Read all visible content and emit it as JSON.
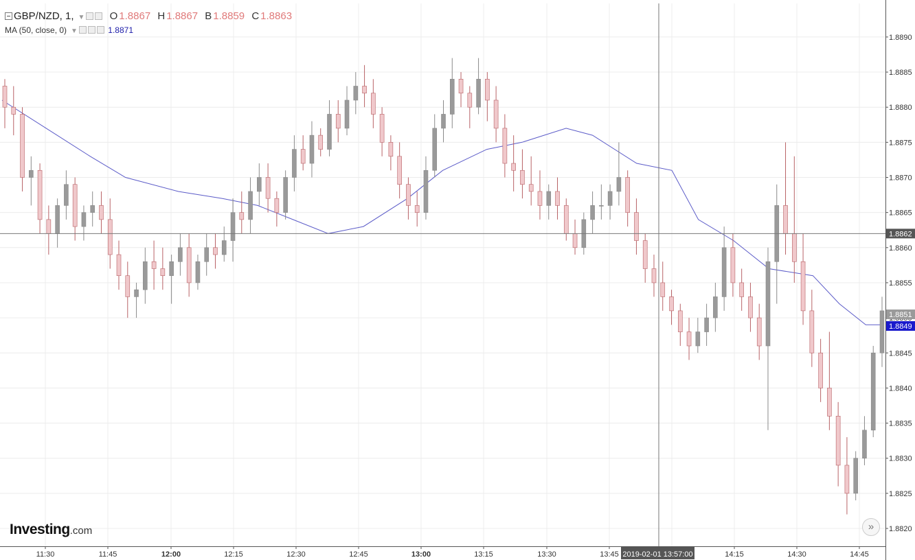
{
  "legend": {
    "symbol": "GBP/NZD, 1,",
    "o_label": "O",
    "o_value": "1.8867",
    "h_label": "H",
    "h_value": "1.8867",
    "b_label": "B",
    "b_value": "1.8859",
    "c_label": "C",
    "c_value": "1.8863",
    "ma_label": "MA (50, close, 0)",
    "ma_value": "1.8871"
  },
  "logo": {
    "main": "Investing",
    "suffix": ".com"
  },
  "scroll_button": {
    "glyph": "»"
  },
  "colors": {
    "up": "#9a9a9a",
    "down": "#f0c8cb",
    "down_edge": "#b86266",
    "ma": "#5b5bc8",
    "axis_text": "#333333",
    "grid": "#ececec"
  },
  "chart_data": {
    "type": "candlestick",
    "ylim": [
      1.8816,
      1.8894
    ],
    "y_ticks": [
      "1.8820",
      "1.8825",
      "1.8830",
      "1.8835",
      "1.8840",
      "1.8845",
      "1.8850",
      "1.8855",
      "1.8860",
      "1.8865",
      "1.8870",
      "1.8875",
      "1.8880",
      "1.8885",
      "1.8890"
    ],
    "x_ticks": [
      "11:30",
      "11:45",
      "12:00",
      "12:15",
      "12:30",
      "12:45",
      "13:00",
      "13:15",
      "13:30",
      "13:45",
      "14:00",
      "14:15",
      "14:30",
      "14:45"
    ],
    "x_ticks_bold": [
      "12:00",
      "13:00"
    ],
    "crosshair_time_label": "2019-02-01 13:57:00",
    "crosshair_price_label": "1.8862",
    "last_price_label": "1.8851",
    "ma_price_label": "1.8849",
    "candles": [
      [
        1.8883,
        1.8884,
        1.8877,
        1.888
      ],
      [
        1.888,
        1.8883,
        1.8876,
        1.8879
      ],
      [
        1.8879,
        1.888,
        1.8868,
        1.887
      ],
      [
        1.887,
        1.8873,
        1.8866,
        1.8871
      ],
      [
        1.8871,
        1.8872,
        1.8862,
        1.8864
      ],
      [
        1.8864,
        1.8866,
        1.8859,
        1.8862
      ],
      [
        1.8862,
        1.8867,
        1.886,
        1.8866
      ],
      [
        1.8866,
        1.8871,
        1.8864,
        1.8869
      ],
      [
        1.8869,
        1.887,
        1.8861,
        1.8863
      ],
      [
        1.8863,
        1.8866,
        1.8861,
        1.8865
      ],
      [
        1.8865,
        1.8868,
        1.8863,
        1.8866
      ],
      [
        1.8866,
        1.8868,
        1.8862,
        1.8864
      ],
      [
        1.8864,
        1.8867,
        1.8857,
        1.8859
      ],
      [
        1.8859,
        1.8861,
        1.8854,
        1.8856
      ],
      [
        1.8856,
        1.8858,
        1.885,
        1.8853
      ],
      [
        1.8853,
        1.8855,
        1.885,
        1.8854
      ],
      [
        1.8854,
        1.886,
        1.8852,
        1.8858
      ],
      [
        1.8858,
        1.8861,
        1.8854,
        1.8857
      ],
      [
        1.8857,
        1.886,
        1.8854,
        1.8856
      ],
      [
        1.8856,
        1.8859,
        1.8852,
        1.8858
      ],
      [
        1.8858,
        1.8862,
        1.8856,
        1.886
      ],
      [
        1.886,
        1.8862,
        1.8853,
        1.8855
      ],
      [
        1.8855,
        1.8859,
        1.8854,
        1.8858
      ],
      [
        1.8858,
        1.8862,
        1.8856,
        1.886
      ],
      [
        1.886,
        1.8862,
        1.8857,
        1.8859
      ],
      [
        1.8859,
        1.8863,
        1.8858,
        1.8861
      ],
      [
        1.8861,
        1.8867,
        1.8858,
        1.8865
      ],
      [
        1.8865,
        1.8868,
        1.8862,
        1.8864
      ],
      [
        1.8864,
        1.887,
        1.8862,
        1.8868
      ],
      [
        1.8868,
        1.8872,
        1.8866,
        1.887
      ],
      [
        1.887,
        1.8872,
        1.8865,
        1.8867
      ],
      [
        1.8867,
        1.8868,
        1.8863,
        1.8865
      ],
      [
        1.8865,
        1.8871,
        1.8864,
        1.887
      ],
      [
        1.887,
        1.8876,
        1.8868,
        1.8874
      ],
      [
        1.8874,
        1.8876,
        1.8871,
        1.8872
      ],
      [
        1.8872,
        1.8878,
        1.887,
        1.8876
      ],
      [
        1.8876,
        1.8877,
        1.8873,
        1.8874
      ],
      [
        1.8874,
        1.8881,
        1.8873,
        1.8879
      ],
      [
        1.8879,
        1.8881,
        1.8875,
        1.8877
      ],
      [
        1.8877,
        1.8883,
        1.8876,
        1.8881
      ],
      [
        1.8881,
        1.8885,
        1.8879,
        1.8883
      ],
      [
        1.8883,
        1.8886,
        1.888,
        1.8882
      ],
      [
        1.8882,
        1.8884,
        1.8877,
        1.8879
      ],
      [
        1.8879,
        1.888,
        1.8873,
        1.8875
      ],
      [
        1.8875,
        1.8876,
        1.8871,
        1.8873
      ],
      [
        1.8873,
        1.8875,
        1.8867,
        1.8869
      ],
      [
        1.8869,
        1.887,
        1.8864,
        1.8866
      ],
      [
        1.8866,
        1.8868,
        1.8863,
        1.8865
      ],
      [
        1.8865,
        1.8873,
        1.8864,
        1.8871
      ],
      [
        1.8871,
        1.8879,
        1.887,
        1.8877
      ],
      [
        1.8877,
        1.8881,
        1.8875,
        1.8879
      ],
      [
        1.8879,
        1.8887,
        1.8877,
        1.8884
      ],
      [
        1.8884,
        1.8885,
        1.888,
        1.8882
      ],
      [
        1.8882,
        1.8883,
        1.8877,
        1.888
      ],
      [
        1.888,
        1.8887,
        1.8879,
        1.8884
      ],
      [
        1.8884,
        1.8885,
        1.8878,
        1.8881
      ],
      [
        1.8881,
        1.8883,
        1.8875,
        1.8877
      ],
      [
        1.8877,
        1.8879,
        1.887,
        1.8872
      ],
      [
        1.8872,
        1.8876,
        1.8868,
        1.8871
      ],
      [
        1.8871,
        1.8874,
        1.8867,
        1.8869
      ],
      [
        1.8869,
        1.8873,
        1.8866,
        1.8868
      ],
      [
        1.8868,
        1.8871,
        1.8864,
        1.8866
      ],
      [
        1.8866,
        1.8869,
        1.8864,
        1.8868
      ],
      [
        1.8868,
        1.887,
        1.8864,
        1.8866
      ],
      [
        1.8866,
        1.8867,
        1.8861,
        1.8862
      ],
      [
        1.8862,
        1.8864,
        1.8859,
        1.886
      ],
      [
        1.886,
        1.8865,
        1.8859,
        1.8864
      ],
      [
        1.8864,
        1.8868,
        1.8862,
        1.8866
      ],
      [
        1.8866,
        1.8869,
        1.8864,
        1.8866
      ],
      [
        1.8866,
        1.8869,
        1.8864,
        1.8868
      ],
      [
        1.8868,
        1.8875,
        1.8866,
        1.887
      ],
      [
        1.887,
        1.8871,
        1.8863,
        1.8865
      ],
      [
        1.8865,
        1.8867,
        1.8859,
        1.8861
      ],
      [
        1.8861,
        1.8862,
        1.8855,
        1.8857
      ],
      [
        1.8857,
        1.8859,
        1.8853,
        1.8855
      ],
      [
        1.8855,
        1.8858,
        1.8851,
        1.8853
      ],
      [
        1.8853,
        1.8854,
        1.8849,
        1.8851
      ],
      [
        1.8851,
        1.8852,
        1.8846,
        1.8848
      ],
      [
        1.8848,
        1.885,
        1.8844,
        1.8846
      ],
      [
        1.8846,
        1.885,
        1.8845,
        1.8848
      ],
      [
        1.8848,
        1.8852,
        1.8846,
        1.885
      ],
      [
        1.885,
        1.8855,
        1.8848,
        1.8853
      ],
      [
        1.8853,
        1.8863,
        1.8851,
        1.886
      ],
      [
        1.886,
        1.8862,
        1.8853,
        1.8855
      ],
      [
        1.8855,
        1.8857,
        1.8851,
        1.8853
      ],
      [
        1.8853,
        1.8855,
        1.8848,
        1.885
      ],
      [
        1.885,
        1.8852,
        1.8844,
        1.8846
      ],
      [
        1.8846,
        1.886,
        1.8834,
        1.8858
      ],
      [
        1.8858,
        1.8869,
        1.8852,
        1.8866
      ],
      [
        1.8866,
        1.8875,
        1.8859,
        1.8862
      ],
      [
        1.8862,
        1.8873,
        1.8855,
        1.8858
      ],
      [
        1.8858,
        1.8862,
        1.8849,
        1.8851
      ],
      [
        1.8851,
        1.8854,
        1.8843,
        1.8845
      ],
      [
        1.8845,
        1.8847,
        1.8838,
        1.884
      ],
      [
        1.884,
        1.8848,
        1.8834,
        1.8836
      ],
      [
        1.8836,
        1.8838,
        1.8826,
        1.8829
      ],
      [
        1.8829,
        1.8833,
        1.8822,
        1.8825
      ],
      [
        1.8825,
        1.8831,
        1.8824,
        1.883
      ],
      [
        1.883,
        1.8836,
        1.8829,
        1.8834
      ],
      [
        1.8834,
        1.8846,
        1.8833,
        1.8845
      ],
      [
        1.8845,
        1.8853,
        1.8843,
        1.8851
      ]
    ],
    "ma": [
      [
        0,
        1.8881
      ],
      [
        0.05,
        1.8877
      ],
      [
        0.1,
        1.8873
      ],
      [
        0.14,
        1.887
      ],
      [
        0.2,
        1.8868
      ],
      [
        0.25,
        1.8867
      ],
      [
        0.29,
        1.8866
      ],
      [
        0.33,
        1.8864
      ],
      [
        0.37,
        1.8862
      ],
      [
        0.41,
        1.8863
      ],
      [
        0.46,
        1.8867
      ],
      [
        0.5,
        1.8871
      ],
      [
        0.55,
        1.8874
      ],
      [
        0.59,
        1.8875
      ],
      [
        0.64,
        1.8877
      ],
      [
        0.67,
        1.8876
      ],
      [
        0.72,
        1.8872
      ],
      [
        0.76,
        1.8871
      ],
      [
        0.79,
        1.8864
      ],
      [
        0.83,
        1.8861
      ],
      [
        0.87,
        1.8857
      ],
      [
        0.92,
        1.8856
      ],
      [
        0.95,
        1.8852
      ],
      [
        0.98,
        1.8849
      ],
      [
        1,
        1.8849
      ]
    ]
  }
}
